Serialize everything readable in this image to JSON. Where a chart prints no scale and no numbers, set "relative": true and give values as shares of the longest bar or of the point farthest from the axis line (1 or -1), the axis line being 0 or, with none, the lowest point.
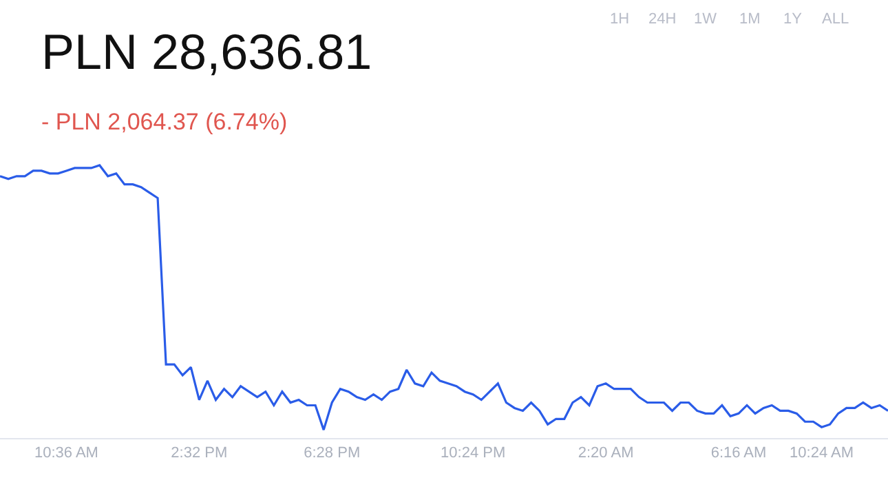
{
  "chart_data": {
    "type": "line",
    "title": "PLN 28,636.81",
    "subtitle": "- PLN 2,064.37 (6.74%)",
    "annotations": [
      "1H",
      "24H",
      "1W",
      "1M",
      "1Y",
      "ALL"
    ],
    "relative": true,
    "legend": false,
    "marker": "none",
    "line_style": "solid",
    "tick_labels": "x",
    "categories": [
      null,
      null,
      null,
      null,
      null,
      null,
      null,
      null,
      "10:36 AM",
      null,
      null,
      null,
      null,
      null,
      null,
      null,
      null,
      null,
      null,
      null,
      null,
      null,
      null,
      null,
      "2:32 PM",
      null,
      null,
      null,
      null,
      null,
      null,
      null,
      null,
      null,
      null,
      null,
      null,
      null,
      null,
      null,
      "6:28 PM",
      null,
      null,
      null,
      null,
      null,
      null,
      null,
      null,
      null,
      null,
      null,
      null,
      null,
      null,
      null,
      null,
      "10:24 PM",
      null,
      null,
      null,
      null,
      null,
      null,
      null,
      null,
      null,
      null,
      null,
      null,
      null,
      null,
      null,
      "2:20 AM",
      null,
      null,
      null,
      null,
      null,
      null,
      null,
      null,
      null,
      null,
      null,
      null,
      null,
      null,
      null,
      "6:16 AM",
      null,
      null,
      null,
      null,
      null,
      null,
      null,
      null,
      null,
      "10:24 AM",
      null,
      null,
      null,
      null,
      null,
      null,
      null,
      null
    ],
    "series": [
      {
        "color": "#2a5ce8",
        "values": [
          0.96,
          0.95,
          0.96,
          0.96,
          0.98,
          0.98,
          0.97,
          0.97,
          0.98,
          0.99,
          0.99,
          0.99,
          1,
          0.96,
          0.97,
          0.93,
          0.93,
          0.92,
          0.9,
          0.88,
          0.27,
          0.27,
          0.23,
          0.26,
          0.14,
          0.21,
          0.14,
          0.18,
          0.15,
          0.19,
          0.17,
          0.15,
          0.17,
          0.12,
          0.17,
          0.13,
          0.14,
          0.12,
          0.12,
          0.03,
          0.13,
          0.18,
          0.17,
          0.15,
          0.14,
          0.16,
          0.14,
          0.17,
          0.18,
          0.25,
          0.2,
          0.19,
          0.24,
          0.21,
          0.2,
          0.19,
          0.17,
          0.16,
          0.14,
          0.17,
          0.2,
          0.13,
          0.11,
          0.1,
          0.13,
          0.1,
          0.05,
          0.07,
          0.07,
          0.13,
          0.15,
          0.12,
          0.19,
          0.2,
          0.18,
          0.18,
          0.18,
          0.15,
          0.13,
          0.13,
          0.13,
          0.1,
          0.13,
          0.13,
          0.1,
          0.09,
          0.09,
          0.12,
          0.08,
          0.09,
          0.12,
          0.09,
          0.11,
          0.12,
          0.1,
          0.1,
          0.09,
          0.06,
          0.06,
          0.04,
          0.05,
          0.09,
          0.11,
          0.11,
          0.13,
          0.11,
          0.12,
          0.1
        ]
      }
    ]
  }
}
